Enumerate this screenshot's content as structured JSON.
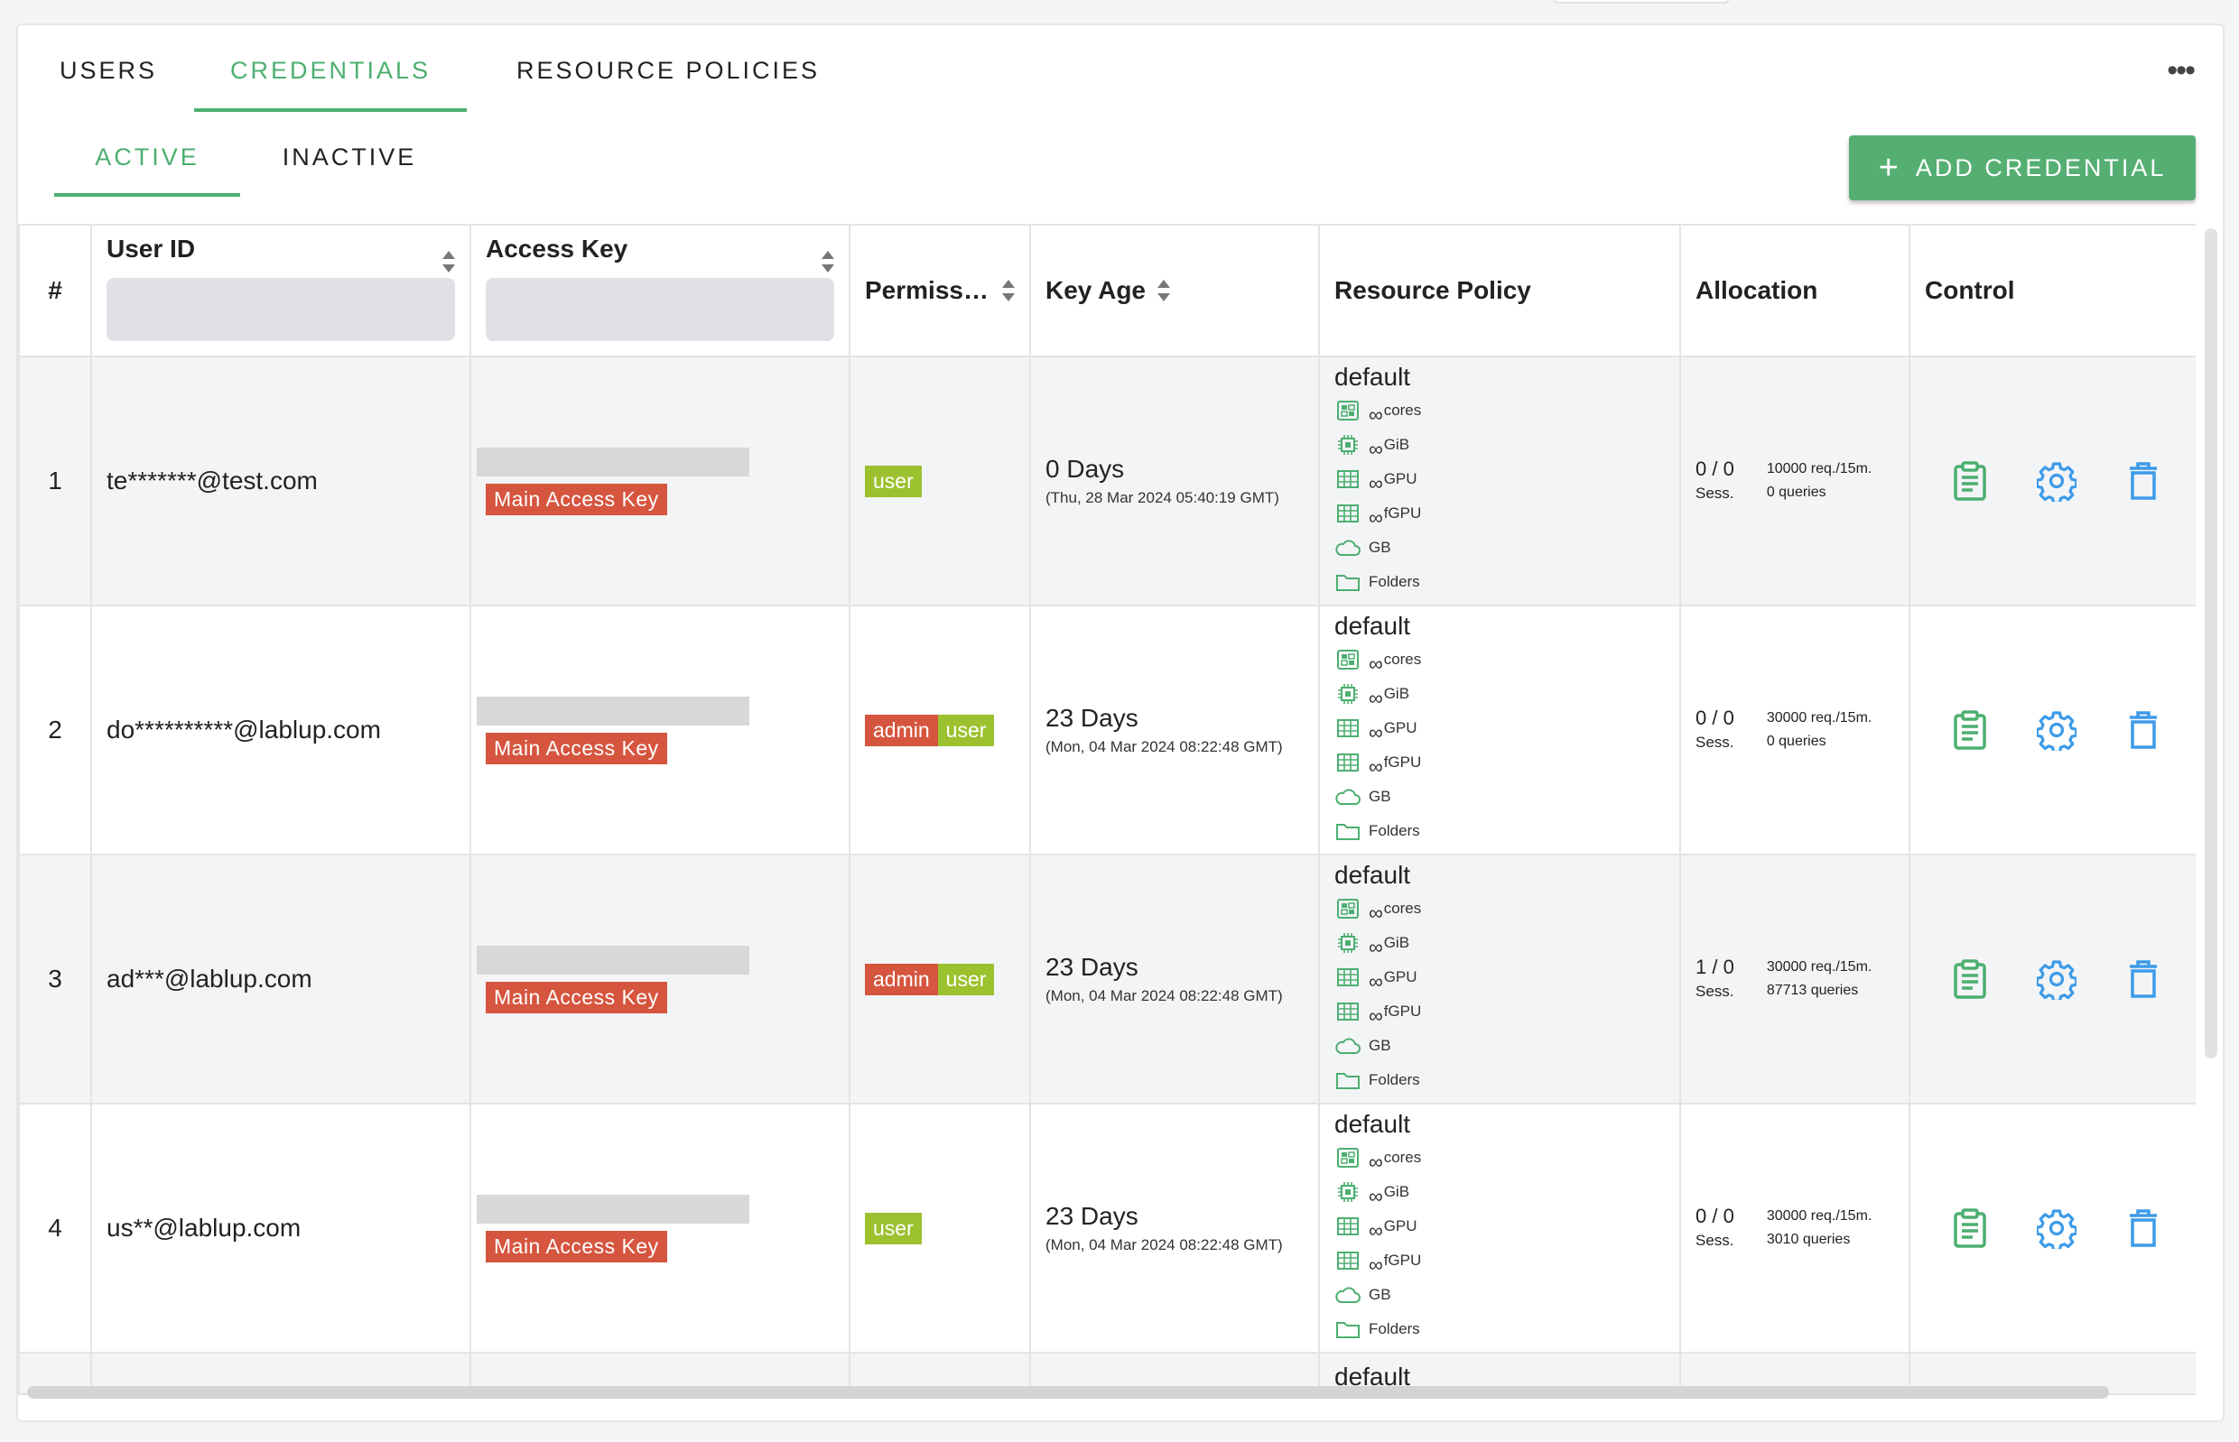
{
  "tabs": [
    {
      "label": "USERS",
      "active": false
    },
    {
      "label": "CREDENTIALS",
      "active": true
    },
    {
      "label": "RESOURCE POLICIES",
      "active": false
    }
  ],
  "more_label": "•••",
  "subtabs": [
    {
      "label": "ACTIVE",
      "active": true
    },
    {
      "label": "INACTIVE",
      "active": false
    }
  ],
  "add_button": {
    "icon": "plus-icon",
    "label": "ADD CREDENTIAL"
  },
  "colors": {
    "accent": "#4caf70",
    "button": "#55af73",
    "main_key_badge": "#d6553f",
    "user_badge": "#9cc12e",
    "admin_badge": "#d6553f",
    "settings_icon": "#3d9be9",
    "delete_icon": "#3d9be9",
    "info_icon": "#4caf70"
  },
  "table": {
    "headers": {
      "index": "#",
      "user_id": "User ID",
      "access_key": "Access Key",
      "permission": "Permiss…",
      "key_age": "Key Age",
      "resource_policy": "Resource Policy",
      "allocation": "Allocation",
      "control": "Control"
    },
    "resource_labels": {
      "cores": "cores",
      "mem": "GiB",
      "gpu": "GPU",
      "fgpu": "fGPU",
      "storage": "GB",
      "folders": "Folders",
      "infinity": "∞"
    },
    "main_key_label": "Main Access Key",
    "sess_label": "Sess.",
    "rows": [
      {
        "index": "1",
        "user_id": "te*******@test.com",
        "permissions": [
          "user"
        ],
        "key_age": "0 Days",
        "key_date": "(Thu, 28 Mar 2024 05:40:19 GMT)",
        "policy": "default",
        "sessions": "0 / 0",
        "rate": "10000 req./15m.",
        "queries": "0 queries"
      },
      {
        "index": "2",
        "user_id": "do**********@lablup.com",
        "permissions": [
          "admin",
          "user"
        ],
        "key_age": "23 Days",
        "key_date": "(Mon, 04 Mar 2024 08:22:48 GMT)",
        "policy": "default",
        "sessions": "0 / 0",
        "rate": "30000 req./15m.",
        "queries": "0 queries"
      },
      {
        "index": "3",
        "user_id": "ad***@lablup.com",
        "permissions": [
          "admin",
          "user"
        ],
        "key_age": "23 Days",
        "key_date": "(Mon, 04 Mar 2024 08:22:48 GMT)",
        "policy": "default",
        "sessions": "1 / 0",
        "rate": "30000 req./15m.",
        "queries": "87713 queries"
      },
      {
        "index": "4",
        "user_id": "us**@lablup.com",
        "permissions": [
          "user"
        ],
        "key_age": "23 Days",
        "key_date": "(Mon, 04 Mar 2024 08:22:48 GMT)",
        "policy": "default",
        "sessions": "0 / 0",
        "rate": "30000 req./15m.",
        "queries": "3010 queries"
      }
    ],
    "partial_row": {
      "policy": "default"
    }
  }
}
